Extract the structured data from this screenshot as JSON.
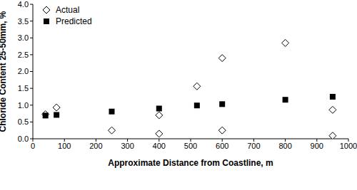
{
  "chart_data": {
    "type": "scatter",
    "x_label": "Approximate Distance from Coastline, m",
    "y_label": "Chloride Content 25-50mm, %",
    "xlim": [
      0,
      1000
    ],
    "xticks": [
      0,
      100,
      200,
      300,
      400,
      500,
      600,
      700,
      800,
      900,
      1000
    ],
    "ylim": [
      0,
      4
    ],
    "yticks": [
      {
        "value": 0,
        "label": "0.0"
      },
      0.5,
      {
        "value": 1,
        "label": "1.0"
      },
      1.5,
      {
        "value": 2,
        "label": "2.0"
      },
      2.5,
      {
        "value": 3,
        "label": "3.0"
      },
      3.5,
      {
        "value": 4,
        "label": "4.0"
      }
    ],
    "grid": false,
    "legend": "top-left",
    "series": [
      {
        "name": "Actual",
        "color": "#000000",
        "marker": "diamond",
        "x": [
          40,
          75,
          250,
          400,
          400,
          520,
          600,
          600,
          800,
          950,
          950
        ],
        "values": [
          0.73,
          0.93,
          0.25,
          0.7,
          0.15,
          1.56,
          2.4,
          0.25,
          2.85,
          0.86,
          0.09
        ]
      },
      {
        "name": "Predicted",
        "color": "#000000",
        "marker": "square",
        "x": [
          40,
          75,
          250,
          400,
          520,
          600,
          800,
          950
        ],
        "values": [
          0.69,
          0.71,
          0.81,
          0.9,
          0.99,
          1.03,
          1.16,
          1.25
        ]
      }
    ]
  }
}
